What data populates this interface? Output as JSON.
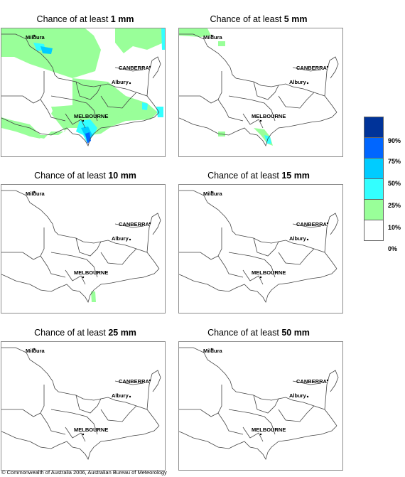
{
  "panels": [
    {
      "prefix": "Chance of at least ",
      "amount": "1 mm"
    },
    {
      "prefix": "Chance of at least ",
      "amount": "5 mm"
    },
    {
      "prefix": "Chance of at least ",
      "amount": "10 mm"
    },
    {
      "prefix": "Chance of at least ",
      "amount": "15 mm"
    },
    {
      "prefix": "Chance of at least ",
      "amount": "25 mm"
    },
    {
      "prefix": "Chance of at least ",
      "amount": "50 mm"
    }
  ],
  "places": {
    "mildura": "Mildura",
    "canberra": "CANBERRA",
    "albury": "Albury",
    "melbourne": "MELBOURNE"
  },
  "legend": {
    "labels": [
      "90%",
      "75%",
      "50%",
      "25%",
      "10%",
      "0%"
    ],
    "colors": [
      "#003399",
      "#0066ff",
      "#00ccff",
      "#33ffff",
      "#99ff99",
      "#ffffff"
    ]
  },
  "copyright": "© Commonwealth of Australia 2006, Australian Bureau of Meteorology"
}
